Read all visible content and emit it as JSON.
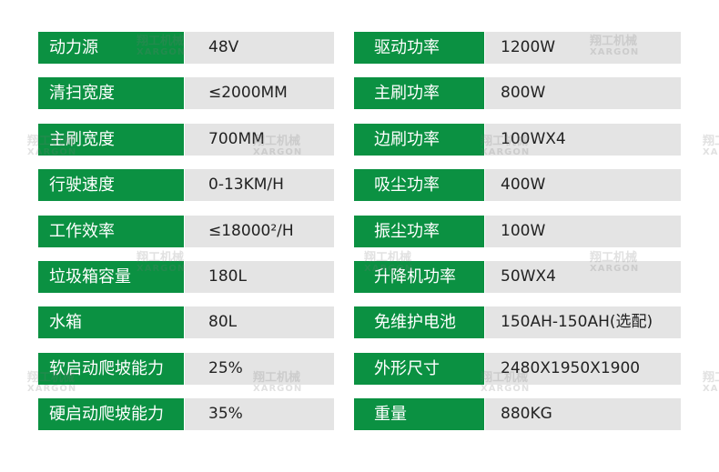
{
  "watermark": {
    "cn": "翔工机械",
    "en": "XARGON"
  },
  "colors": {
    "label_bg": "#0b9142",
    "value_bg": "#e4e4e4"
  },
  "left": [
    {
      "label": "动力源",
      "value": "48V"
    },
    {
      "label": "清扫宽度",
      "value": "≤2000MM"
    },
    {
      "label": "主刷宽度",
      "value": "700MM"
    },
    {
      "label": "行驶速度",
      "value": "0-13KM/H"
    },
    {
      "label": "工作效率",
      "value": "≤18000²/H"
    },
    {
      "label": "垃圾箱容量",
      "value": "180L"
    },
    {
      "label": "水箱",
      "value": "80L"
    },
    {
      "label": "软启动爬坡能力",
      "value": "25%"
    },
    {
      "label": "硬启动爬坡能力",
      "value": "35%"
    }
  ],
  "right": [
    {
      "label": "驱动功率",
      "value": "1200W"
    },
    {
      "label": "主刷功率",
      "value": "800W"
    },
    {
      "label": "边刷功率",
      "value": "100WX4"
    },
    {
      "label": "吸尘功率",
      "value": "400W"
    },
    {
      "label": "振尘功率",
      "value": "100W"
    },
    {
      "label": "升降机功率",
      "value": "50WX4"
    },
    {
      "label": "免维护电池",
      "value": "150AH-150AH(选配)"
    },
    {
      "label": "外形尺寸",
      "value": "2480X1950X1900"
    },
    {
      "label": "重量",
      "value": "880KG"
    }
  ]
}
